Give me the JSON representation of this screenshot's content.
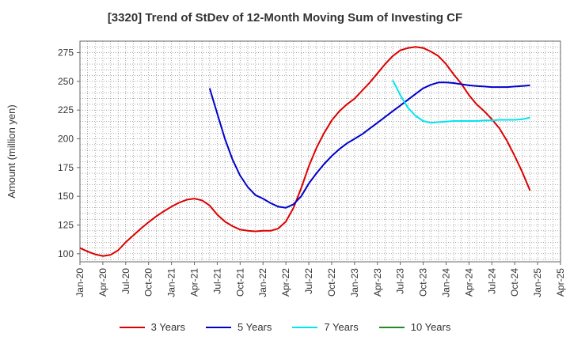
{
  "title": "[3320]  Trend of StDev of 12-Month Moving Sum of Investing CF",
  "chart_data": {
    "type": "line",
    "title": "[3320]  Trend of StDev of 12-Month Moving Sum of Investing CF",
    "xlabel": "",
    "ylabel": "Amount (million yen)",
    "ylim": [
      93,
      285
    ],
    "yticks": [
      100,
      125,
      150,
      175,
      200,
      225,
      250,
      275
    ],
    "xlim": [
      "2020-01",
      "2025-04"
    ],
    "xtick_labels": [
      "Jan-20",
      "Apr-20",
      "Jul-20",
      "Oct-20",
      "Jan-21",
      "Apr-21",
      "Jul-21",
      "Oct-21",
      "Jan-22",
      "Apr-22",
      "Jul-22",
      "Oct-22",
      "Jan-23",
      "Apr-23",
      "Jul-23",
      "Oct-23",
      "Jan-24",
      "Apr-24",
      "Jul-24",
      "Oct-24",
      "Jan-25",
      "Apr-25"
    ],
    "grid": true,
    "legend_position": "bottom",
    "series": [
      {
        "name": "3 Years",
        "color": "#dd0000",
        "points": [
          [
            "2020-01",
            105
          ],
          [
            "2020-02",
            102
          ],
          [
            "2020-03",
            99.5
          ],
          [
            "2020-04",
            98
          ],
          [
            "2020-05",
            99
          ],
          [
            "2020-06",
            103
          ],
          [
            "2020-07",
            110
          ],
          [
            "2020-08",
            116
          ],
          [
            "2020-09",
            122
          ],
          [
            "2020-10",
            127.5
          ],
          [
            "2020-11",
            132.5
          ],
          [
            "2020-12",
            137
          ],
          [
            "2021-01",
            141
          ],
          [
            "2021-02",
            144.5
          ],
          [
            "2021-03",
            147
          ],
          [
            "2021-04",
            148
          ],
          [
            "2021-05",
            146.5
          ],
          [
            "2021-06",
            142
          ],
          [
            "2021-07",
            134
          ],
          [
            "2021-08",
            128
          ],
          [
            "2021-09",
            124
          ],
          [
            "2021-10",
            121
          ],
          [
            "2021-11",
            120
          ],
          [
            "2021-12",
            119.5
          ],
          [
            "2022-01",
            120
          ],
          [
            "2022-02",
            120
          ],
          [
            "2022-03",
            122
          ],
          [
            "2022-04",
            128
          ],
          [
            "2022-05",
            140
          ],
          [
            "2022-06",
            157
          ],
          [
            "2022-07",
            176
          ],
          [
            "2022-08",
            192
          ],
          [
            "2022-09",
            205
          ],
          [
            "2022-10",
            216
          ],
          [
            "2022-11",
            224
          ],
          [
            "2022-12",
            230
          ],
          [
            "2023-01",
            235
          ],
          [
            "2023-02",
            242
          ],
          [
            "2023-03",
            249
          ],
          [
            "2023-04",
            257
          ],
          [
            "2023-05",
            265
          ],
          [
            "2023-06",
            272
          ],
          [
            "2023-07",
            277
          ],
          [
            "2023-08",
            279
          ],
          [
            "2023-09",
            280
          ],
          [
            "2023-10",
            279
          ],
          [
            "2023-11",
            276
          ],
          [
            "2023-12",
            272
          ],
          [
            "2024-01",
            265
          ],
          [
            "2024-02",
            256
          ],
          [
            "2024-03",
            248
          ],
          [
            "2024-04",
            238
          ],
          [
            "2024-05",
            230
          ],
          [
            "2024-06",
            224
          ],
          [
            "2024-07",
            217
          ],
          [
            "2024-08",
            209
          ],
          [
            "2024-09",
            198
          ],
          [
            "2024-10",
            185
          ],
          [
            "2024-11",
            171
          ],
          [
            "2024-12",
            155
          ]
        ]
      },
      {
        "name": "5 Years",
        "color": "#0000cc",
        "points": [
          [
            "2021-06",
            244
          ],
          [
            "2021-07",
            222
          ],
          [
            "2021-08",
            200
          ],
          [
            "2021-09",
            182
          ],
          [
            "2021-10",
            168
          ],
          [
            "2021-11",
            158
          ],
          [
            "2021-12",
            151
          ],
          [
            "2022-01",
            148
          ],
          [
            "2022-02",
            144
          ],
          [
            "2022-03",
            141
          ],
          [
            "2022-04",
            140
          ],
          [
            "2022-05",
            143
          ],
          [
            "2022-06",
            150
          ],
          [
            "2022-07",
            161
          ],
          [
            "2022-08",
            170
          ],
          [
            "2022-09",
            178
          ],
          [
            "2022-10",
            185
          ],
          [
            "2022-11",
            191
          ],
          [
            "2022-12",
            196
          ],
          [
            "2023-01",
            200
          ],
          [
            "2023-02",
            204
          ],
          [
            "2023-03",
            209
          ],
          [
            "2023-04",
            214
          ],
          [
            "2023-05",
            219
          ],
          [
            "2023-06",
            224
          ],
          [
            "2023-07",
            229
          ],
          [
            "2023-08",
            234
          ],
          [
            "2023-09",
            239
          ],
          [
            "2023-10",
            244
          ],
          [
            "2023-11",
            247
          ],
          [
            "2023-12",
            249
          ],
          [
            "2024-01",
            249
          ],
          [
            "2024-02",
            248.5
          ],
          [
            "2024-03",
            247.5
          ],
          [
            "2024-04",
            246.5
          ],
          [
            "2024-05",
            246
          ],
          [
            "2024-06",
            245.5
          ],
          [
            "2024-07",
            245
          ],
          [
            "2024-08",
            245
          ],
          [
            "2024-09",
            245
          ],
          [
            "2024-10",
            245.5
          ],
          [
            "2024-11",
            246
          ],
          [
            "2024-12",
            246.5
          ]
        ]
      },
      {
        "name": "7 Years",
        "color": "#00e5ee",
        "points": [
          [
            "2023-06",
            251
          ],
          [
            "2023-07",
            238
          ],
          [
            "2023-08",
            227
          ],
          [
            "2023-09",
            220
          ],
          [
            "2023-10",
            215.5
          ],
          [
            "2023-11",
            214
          ],
          [
            "2023-12",
            214.5
          ],
          [
            "2024-01",
            215
          ],
          [
            "2024-02",
            215.5
          ],
          [
            "2024-03",
            215.5
          ],
          [
            "2024-04",
            215.5
          ],
          [
            "2024-05",
            215.5
          ],
          [
            "2024-06",
            216
          ],
          [
            "2024-07",
            216
          ],
          [
            "2024-08",
            216.5
          ],
          [
            "2024-09",
            216.5
          ],
          [
            "2024-10",
            216.5
          ],
          [
            "2024-11",
            217
          ],
          [
            "2024-12",
            218.5
          ]
        ]
      },
      {
        "name": "10 Years",
        "color": "#228b22",
        "points": []
      }
    ]
  }
}
